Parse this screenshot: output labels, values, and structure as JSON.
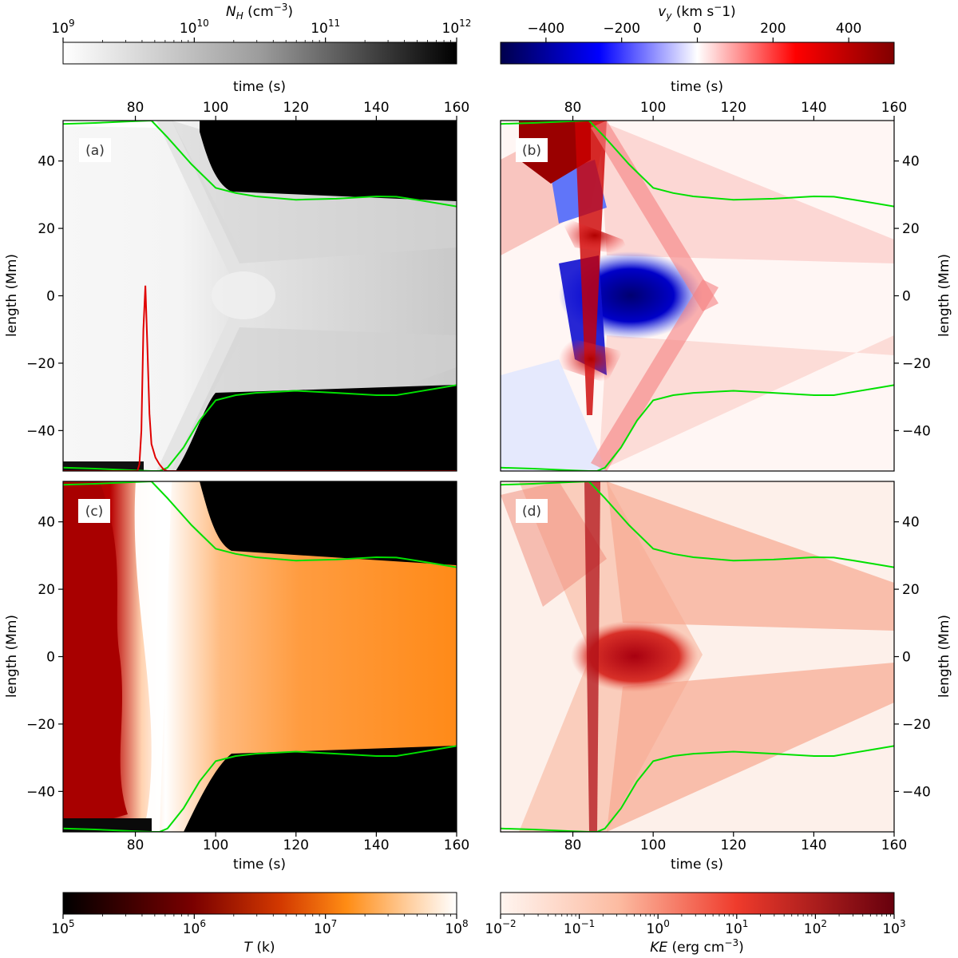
{
  "chart_data": [
    {
      "type": "heatmap",
      "panel_label": "(a)",
      "quantity": "N_H (cm^-3)",
      "x": [
        62,
        160
      ],
      "y": [
        -52,
        52
      ],
      "xlabel": "",
      "ylabel": "length (Mm)",
      "top_axis_label": "time (s)",
      "xticks": [
        "80",
        "100",
        "120",
        "140",
        "160"
      ],
      "yticks": [
        "−40",
        "−20",
        "0",
        "20",
        "40"
      ],
      "colorscale": "gray_r (white to black, log)",
      "colorbar": {
        "label_main": "N",
        "label_sub": "H",
        "label_unit": " (cm",
        "label_exp": "−3",
        "label_tail": ")",
        "scale": "log",
        "range": [
          1000000000.0,
          1000000000000.0
        ],
        "ticks": [
          {
            "base": "10",
            "exp": "9"
          },
          {
            "base": "10",
            "exp": "10"
          },
          {
            "base": "10",
            "exp": "11"
          },
          {
            "base": "10",
            "exp": "12"
          }
        ]
      },
      "series": [
        {
          "color": "#00e000",
          "x": [
            62,
            70,
            80,
            84,
            88,
            94,
            100,
            105,
            110,
            120,
            130,
            140,
            145,
            150,
            155,
            160
          ],
          "y": [
            51,
            51.3,
            51.8,
            52,
            47,
            39,
            32,
            30.5,
            29.5,
            28.5,
            28.8,
            29.5,
            29.4,
            28.5,
            27.5,
            26.5
          ]
        },
        {
          "color": "#00e000",
          "x": [
            62,
            70,
            80,
            84,
            86,
            88,
            92,
            96,
            100,
            105,
            110,
            120,
            130,
            140,
            145,
            150,
            155,
            160
          ],
          "y": [
            -51,
            -51.3,
            -51.8,
            -52,
            -52,
            -51,
            -45,
            -37,
            -31,
            -29.5,
            -28.8,
            -28.2,
            -28.8,
            -29.5,
            -29.5,
            -28.5,
            -27.5,
            -26.5
          ]
        },
        {
          "color": "#e00000",
          "x": [
            62,
            80.5,
            81,
            81.5,
            82,
            82.5,
            83,
            83.5,
            84,
            85,
            86,
            87,
            88,
            90,
            100,
            120,
            140,
            160
          ],
          "y": [
            -52,
            -52,
            -50,
            -40,
            -10,
            3,
            -15,
            -35,
            -44,
            -48,
            -50,
            -51.5,
            -52,
            -52,
            -52,
            -52,
            -52,
            -52
          ]
        }
      ]
    },
    {
      "type": "heatmap",
      "panel_label": "(b)",
      "quantity": "v_y (km s^-1)",
      "x": [
        62,
        160
      ],
      "y": [
        -52,
        52
      ],
      "xlabel": "",
      "ylabel": "length (Mm)",
      "top_axis_label": "time (s)",
      "xticks": [
        "80",
        "100",
        "120",
        "140",
        "160"
      ],
      "yticks": [
        "−40",
        "−20",
        "0",
        "20",
        "40"
      ],
      "colorscale": "seismic (blue-white-red, linear)",
      "colorbar": {
        "label_main": "v",
        "label_sub": "y",
        "label_unit": " (km s",
        "label_exp": "−",
        "label_tail": "1)",
        "scale": "linear",
        "range": [
          -520,
          520
        ],
        "ticks": [
          {
            "value": -400,
            "text": "−400"
          },
          {
            "value": -200,
            "text": "−200"
          },
          {
            "value": 0,
            "text": "0"
          },
          {
            "value": 200,
            "text": "200"
          },
          {
            "value": 400,
            "text": "400"
          }
        ]
      },
      "series": [
        {
          "color": "#00e000",
          "x": [
            62,
            70,
            80,
            84,
            88,
            94,
            100,
            105,
            110,
            120,
            130,
            140,
            145,
            150,
            155,
            160
          ],
          "y": [
            51,
            51.3,
            51.8,
            52,
            47,
            39,
            32,
            30.5,
            29.5,
            28.5,
            28.8,
            29.5,
            29.4,
            28.5,
            27.5,
            26.5
          ]
        },
        {
          "color": "#00e000",
          "x": [
            62,
            70,
            80,
            84,
            86,
            88,
            92,
            96,
            100,
            105,
            110,
            120,
            130,
            140,
            145,
            150,
            155,
            160
          ],
          "y": [
            -51,
            -51.3,
            -51.8,
            -52,
            -52,
            -51,
            -45,
            -37,
            -31,
            -29.5,
            -28.8,
            -28.2,
            -28.8,
            -29.5,
            -29.5,
            -28.5,
            -27.5,
            -26.5
          ]
        }
      ]
    },
    {
      "type": "heatmap",
      "panel_label": "(c)",
      "quantity": "T (k)",
      "x": [
        62,
        160
      ],
      "y": [
        -52,
        52
      ],
      "xlabel": "time (s)",
      "ylabel": "length (Mm)",
      "xticks": [
        "80",
        "100",
        "120",
        "140",
        "160"
      ],
      "yticks": [
        "−40",
        "−20",
        "0",
        "20",
        "40"
      ],
      "colorscale": "gist_heat (black-red-orange-white, log)",
      "colorbar": {
        "label_main": "T",
        "label_unit": " (k)",
        "scale": "log",
        "range": [
          100000.0,
          100000000.0
        ],
        "ticks": [
          {
            "base": "10",
            "exp": "5"
          },
          {
            "base": "10",
            "exp": "6"
          },
          {
            "base": "10",
            "exp": "7"
          },
          {
            "base": "10",
            "exp": "8"
          }
        ]
      },
      "series": [
        {
          "color": "#00e000",
          "x": [
            62,
            70,
            80,
            84,
            88,
            94,
            100,
            105,
            110,
            120,
            130,
            140,
            145,
            150,
            155,
            160
          ],
          "y": [
            51,
            51.3,
            51.8,
            52,
            47,
            39,
            32,
            30.5,
            29.5,
            28.5,
            28.8,
            29.5,
            29.4,
            28.5,
            27.5,
            26.5
          ]
        },
        {
          "color": "#00e000",
          "x": [
            62,
            70,
            80,
            84,
            86,
            88,
            92,
            96,
            100,
            105,
            110,
            120,
            130,
            140,
            145,
            150,
            155,
            160
          ],
          "y": [
            -51,
            -51.3,
            -51.8,
            -52,
            -52,
            -51,
            -45,
            -37,
            -31,
            -29.5,
            -28.8,
            -28.2,
            -28.8,
            -29.5,
            -29.5,
            -28.5,
            -27.5,
            -26.5
          ]
        }
      ]
    },
    {
      "type": "heatmap",
      "panel_label": "(d)",
      "quantity": "KE (erg cm^-3)",
      "x": [
        62,
        160
      ],
      "y": [
        -52,
        52
      ],
      "xlabel": "time (s)",
      "ylabel": "length (Mm)",
      "xticks": [
        "80",
        "100",
        "120",
        "140",
        "160"
      ],
      "yticks": [
        "−40",
        "−20",
        "0",
        "20",
        "40"
      ],
      "colorscale": "Reds (light pink to dark red, log)",
      "colorbar": {
        "label_main": "KE",
        "label_unit": " (erg cm",
        "label_exp": "−3",
        "label_tail": ")",
        "scale": "log",
        "range": [
          0.01,
          1000.0
        ],
        "ticks": [
          {
            "base": "10",
            "exp": "−2"
          },
          {
            "base": "10",
            "exp": "−1"
          },
          {
            "base": "10",
            "exp": "0"
          },
          {
            "base": "10",
            "exp": "1"
          },
          {
            "base": "10",
            "exp": "2"
          },
          {
            "base": "10",
            "exp": "3"
          }
        ]
      },
      "series": [
        {
          "color": "#00e000",
          "x": [
            62,
            70,
            80,
            84,
            88,
            94,
            100,
            105,
            110,
            120,
            130,
            140,
            145,
            150,
            155,
            160
          ],
          "y": [
            51,
            51.3,
            51.8,
            52,
            47,
            39,
            32,
            30.5,
            29.5,
            28.5,
            28.8,
            29.5,
            29.4,
            28.5,
            27.5,
            26.5
          ]
        },
        {
          "color": "#00e000",
          "x": [
            62,
            70,
            80,
            84,
            86,
            88,
            92,
            96,
            100,
            105,
            110,
            120,
            130,
            140,
            145,
            150,
            155,
            160
          ],
          "y": [
            -51,
            -51.3,
            -51.8,
            -52,
            -52,
            -51,
            -45,
            -37,
            -31,
            -29.5,
            -28.8,
            -28.2,
            -28.8,
            -29.5,
            -29.5,
            -28.5,
            -27.5,
            -26.5
          ]
        }
      ]
    }
  ]
}
